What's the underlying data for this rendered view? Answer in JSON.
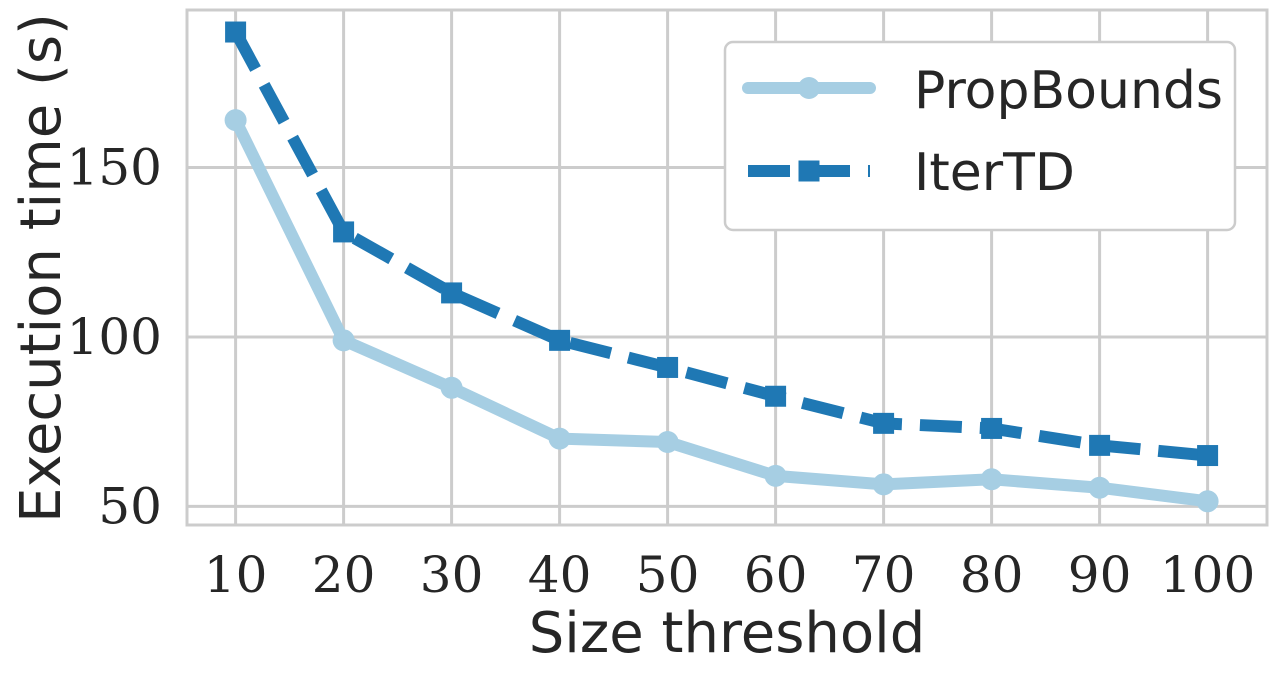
{
  "chart_data": {
    "type": "line",
    "title": "",
    "xlabel": "Size threshold",
    "ylabel": "Execution time (s)",
    "x": [
      10,
      20,
      30,
      40,
      50,
      60,
      70,
      80,
      90,
      100
    ],
    "xticks": [
      "10",
      "20",
      "30",
      "40",
      "50",
      "60",
      "70",
      "80",
      "90",
      "100"
    ],
    "yticks": [
      50,
      100,
      150
    ],
    "ytick_labels": [
      "50",
      "100",
      "150"
    ],
    "xlim": [
      5.5,
      105.5
    ],
    "ylim": [
      44.5,
      196.5
    ],
    "grid": true,
    "legend_position": "top-right",
    "series": [
      {
        "name": "PropBounds",
        "values": [
          164,
          99,
          85,
          70,
          69,
          59,
          56.5,
          58,
          55.5,
          51.5
        ],
        "color": "#a6cee3",
        "marker": "circle",
        "linestyle": "solid"
      },
      {
        "name": "IterTD",
        "values": [
          190,
          131,
          113,
          99,
          91,
          82.5,
          74.5,
          73,
          68,
          65
        ],
        "color": "#1f78b4",
        "marker": "square",
        "linestyle": "dashed"
      }
    ]
  }
}
